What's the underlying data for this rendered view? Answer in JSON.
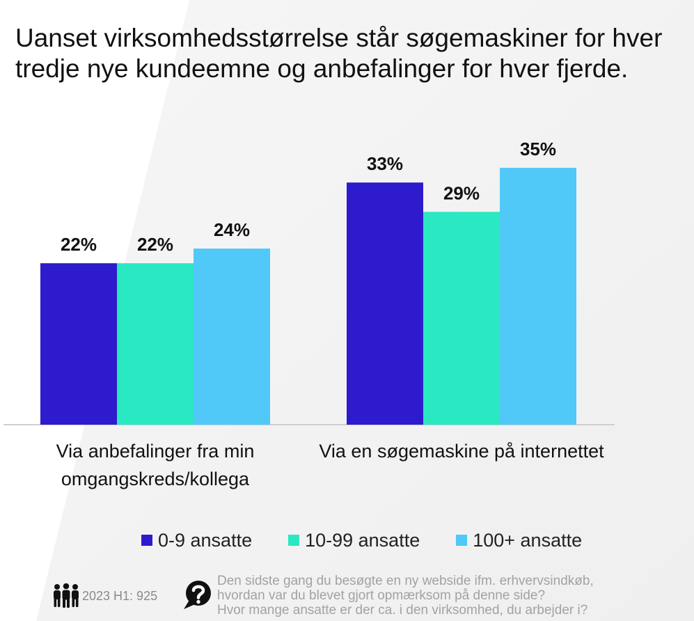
{
  "chart_data": {
    "type": "bar",
    "title": "Uanset virksomhedsstørrelse står søgemaskiner for hver tredje nye kundeemne og anbefalinger for hver fjerde.",
    "categories": [
      "Via anbefalinger fra min omgangskreds/kollega",
      "Via en søgemaskine på internettet"
    ],
    "series": [
      {
        "name": "0-9 ansatte",
        "color": "#2d1bcd",
        "values": [
          22,
          33
        ]
      },
      {
        "name": "10-99 ansatte",
        "color": "#2ae8c2",
        "values": [
          22,
          29
        ]
      },
      {
        "name": "100+ ansatte",
        "color": "#50c8f8",
        "values": [
          24,
          35
        ]
      }
    ],
    "unit": "%",
    "data_labels": true,
    "y_axis_visible": false,
    "grid": false,
    "legend_position": "bottom"
  },
  "footer": {
    "sample": {
      "icon": "people-icon",
      "text": "2023 H1: 925"
    },
    "question": {
      "icon": "question-bubble-icon",
      "lines": [
        "Den sidste gang du besøgte en ny webside ifm. erhvervsindkøb,",
        "hvordan var du blevet gjort opmærksom på denne side?",
        "Hvor mange ansatte er der ca. i den virksomhed, du arbejder i?"
      ]
    }
  }
}
